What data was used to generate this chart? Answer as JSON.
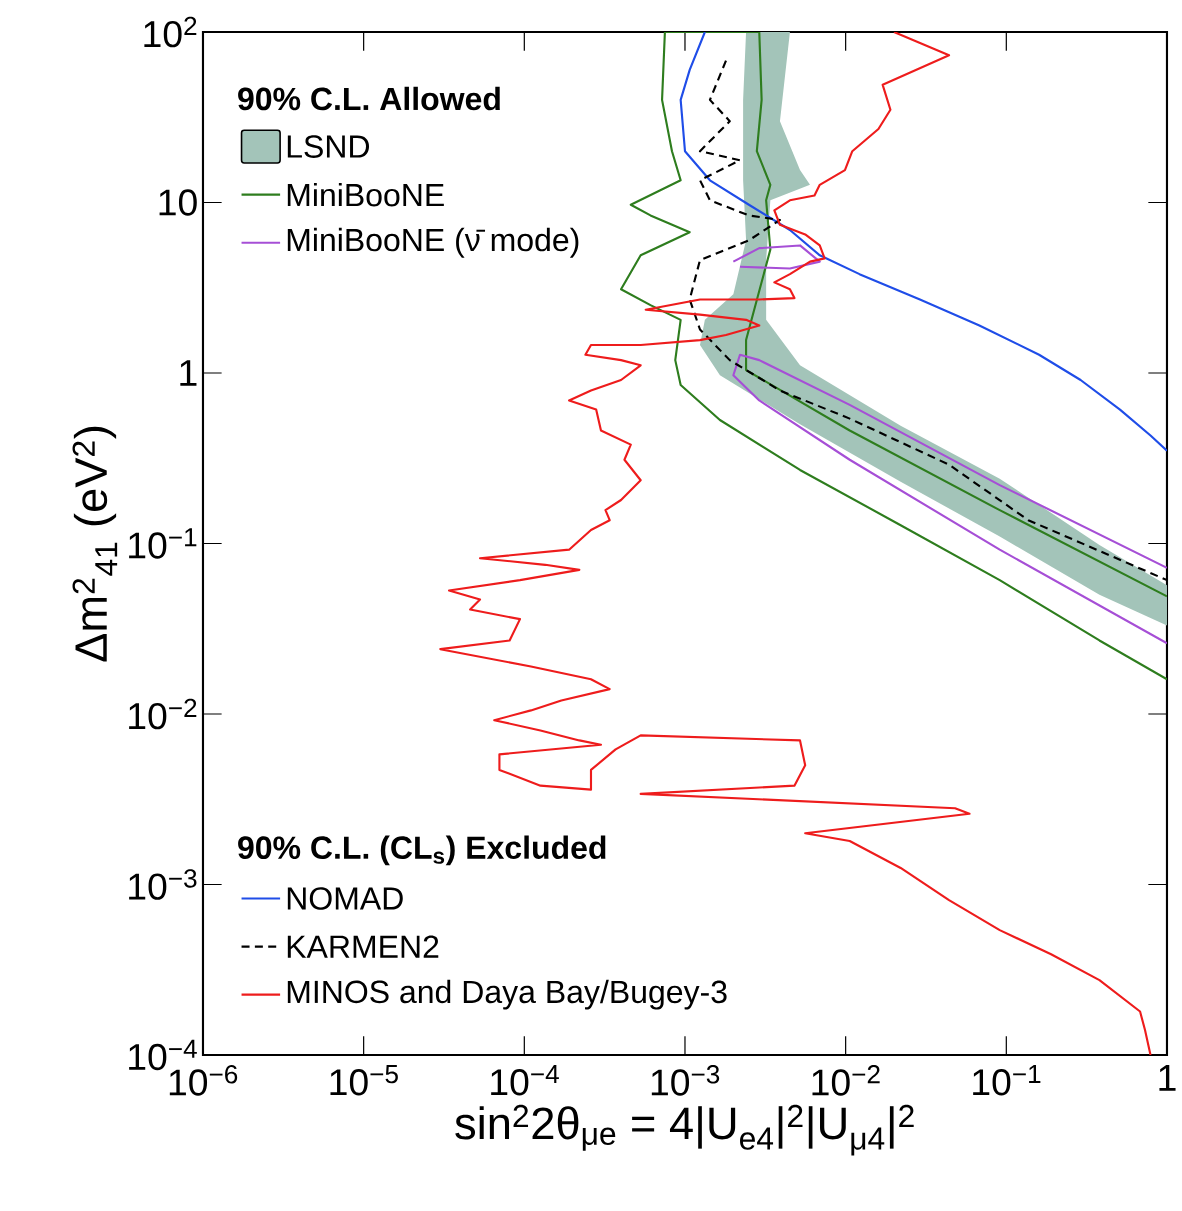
{
  "chart_data": {
    "type": "line",
    "xlabel": "sin$^{2}$2θ$_{μe}$ = 4|U$_{e4}$|$^{2}$|U$_{μ4}$|$^{2}$",
    "ylabel": "Δm$^{2}$$_{41}$ (eV$^{2}$)",
    "log": "xy",
    "legend": "left",
    "legend_title": "90% C.L. Allowed",
    "annotations": [
      "90% C.L. (CL$_{s}$) Excluded"
    ],
    "xlim": [
      1e-06,
      1
    ],
    "ylim": [
      0.0001,
      100
    ],
    "xticks": [
      {
        "value": 1e-06,
        "label": "10$^{−6}$"
      },
      {
        "value": 1e-05,
        "label": "10$^{−5}$"
      },
      {
        "value": 0.0001,
        "label": "10$^{−4}$"
      },
      {
        "value": 0.001,
        "label": "10$^{−3}$"
      },
      {
        "value": 0.01,
        "label": "10$^{−2}$"
      },
      {
        "value": 0.1,
        "label": "10$^{−1}$"
      },
      1
    ],
    "yticks": [
      {
        "value": 0.0001,
        "label": "10$^{−4}$"
      },
      {
        "value": 0.001,
        "label": "10$^{−3}$"
      },
      {
        "value": 0.01,
        "label": "10$^{−2}$"
      },
      {
        "value": 0.1,
        "label": "10$^{−1}$"
      },
      1,
      10,
      {
        "value": 100,
        "label": "10$^{2}$"
      }
    ],
    "series": [
      {
        "name": "LSND",
        "type": "area",
        "color": "#a3c4b9",
        "x": [
          0.0024,
          0.0045,
          0.0039,
          0.0052,
          0.006,
          0.0034,
          0.0032,
          0.0032,
          0.0052,
          0.022,
          0.091,
          0.38,
          1,
          1,
          0.38,
          0.091,
          0.022,
          0.0052,
          0.00165,
          0.00124,
          0.00133,
          0.002,
          0.0024,
          0.0023,
          0.0023
        ],
        "values": [
          100,
          100,
          30,
          15.5,
          12.7,
          10.3,
          4.6,
          2.05,
          1.11,
          0.49,
          0.24,
          0.098,
          0.057,
          0.033,
          0.05,
          0.11,
          0.23,
          0.5,
          0.97,
          1.46,
          2.05,
          2.9,
          6.0,
          13.5,
          40
        ]
      },
      {
        "name": "MiniBooNE",
        "color": "#2e7d1e",
        "x": [
          1,
          0.091,
          0.0106,
          0.0024,
          0.0024,
          0.0034,
          0.0032,
          0.0034,
          0.0028,
          0.003,
          0.0029,
          0.00075,
          0.00072,
          0.00083,
          0.00094,
          0.00046,
          0.00061,
          0.00107,
          0.00053,
          0.0004,
          0.00061,
          0.00094,
          0.00087,
          0.00094,
          0.00165,
          0.0052,
          0.022,
          0.091,
          0.38,
          1
        ],
        "values": [
          0.049,
          0.157,
          0.46,
          1.04,
          1.56,
          5.3,
          10.3,
          12.7,
          20,
          40,
          100,
          100,
          40,
          20,
          13.5,
          9.7,
          8.4,
          6.7,
          4.9,
          3.1,
          2.5,
          2.05,
          1.19,
          0.85,
          0.53,
          0.27,
          0.128,
          0.061,
          0.027,
          0.016
        ]
      },
      {
        "name": "MiniBooNE (ν̄ mode)",
        "color": "#a64fd6",
        "x": [
          1,
          0.091,
          0.0106,
          0.0029,
          0.0022,
          0.002,
          0.0029,
          0.0106,
          0.091,
          1
        ],
        "values": [
          0.072,
          0.22,
          0.65,
          1.19,
          1.28,
          0.97,
          0.69,
          0.31,
          0.092,
          0.026
        ]
      },
      {
        "color": "#a64fd6",
        "x": [
          0.002,
          0.0029,
          0.0052,
          0.0069,
          0.0045,
          0.0022
        ],
        "values": [
          4.5,
          5.4,
          5.6,
          4.5,
          4.1,
          4.2
        ]
      },
      {
        "name": "NOMAD",
        "color": "#1f4de8",
        "x": [
          0.00133,
          0.00107,
          0.00094,
          0.001,
          0.00143,
          0.0025,
          0.0045,
          0.0069,
          0.0122,
          0.029,
          0.068,
          0.16,
          0.29,
          0.51,
          0.79,
          1
        ],
        "values": [
          100,
          60,
          40,
          20,
          13.5,
          9.7,
          6.9,
          4.9,
          3.8,
          2.7,
          1.9,
          1.28,
          0.91,
          0.61,
          0.43,
          0.35
        ]
      },
      {
        "name": "KARMEN2",
        "color": "#000000",
        "line_style": "dashed",
        "x": [
          0.0018,
          0.00143,
          0.0019,
          0.00124,
          0.0022,
          0.00124,
          0.00143,
          0.0025,
          0.0039,
          0.0025,
          0.00124,
          0.00107,
          0.00124,
          0.0019,
          0.0039,
          0.0106,
          0.044,
          0.137,
          1
        ],
        "values": [
          68,
          40,
          30,
          20,
          17.7,
          13.5,
          10.3,
          8.4,
          7.9,
          6.0,
          4.6,
          2.7,
          1.8,
          1.19,
          0.79,
          0.54,
          0.29,
          0.137,
          0.061
        ]
      },
      {
        "name": "MINOS and Daya Bay/Bugey-3",
        "color": "#ee1c1c",
        "x": [
          0.02,
          0.044,
          0.017,
          0.019,
          0.016,
          0.011,
          0.0099,
          0.0069,
          0.0064,
          0.0045,
          0.0036,
          0.0039,
          0.0056,
          0.0069,
          0.0074,
          0.006,
          0.0045,
          0.0036,
          0.0045,
          0.0048,
          0.0029,
          0.00124,
          0.00057,
          0.00124,
          0.0024,
          0.0029,
          0.0018,
          0.00124,
          0.00053,
          0.00026,
          0.00024,
          0.0004,
          0.00053,
          0.0004,
          0.00026,
          0.00019,
          0.00028,
          0.0003,
          0.00046,
          0.00042,
          0.00053,
          0.0004,
          0.00032,
          0.00034,
          0.00026,
          0.00019,
          5.3e-05,
          0.000135,
          0.00022,
          9.4e-05,
          3.4e-05,
          5.3e-05,
          4.6e-05,
          9.4e-05,
          8.1e-05,
          3e-05,
          0.00011,
          0.00026,
          0.00034,
          0.00017,
          0.00011,
          6.5e-05,
          0.000126,
          0.00022,
          0.0003,
          7e-05,
          7e-05,
          0.000126,
          0.00026,
          0.00026,
          0.00037,
          0.00053,
          0.0052,
          0.0056,
          0.0048,
          0.00053,
          0.048,
          0.059,
          0.0056,
          0.0106,
          0.022,
          0.044,
          0.091,
          0.19,
          0.38,
          0.68,
          0.73,
          0.79
        ],
        "values": [
          100,
          73,
          49,
          35,
          27,
          20,
          15.5,
          12.7,
          11,
          10.3,
          9.0,
          7.4,
          6.5,
          5.6,
          4.7,
          4.5,
          3.8,
          3.4,
          3.1,
          2.75,
          2.7,
          2.7,
          2.35,
          2.2,
          2.05,
          1.9,
          1.67,
          1.56,
          1.46,
          1.46,
          1.28,
          1.19,
          1.11,
          0.91,
          0.79,
          0.69,
          0.61,
          0.46,
          0.38,
          0.31,
          0.235,
          0.18,
          0.157,
          0.137,
          0.12,
          0.092,
          0.082,
          0.075,
          0.07,
          0.061,
          0.053,
          0.047,
          0.041,
          0.036,
          0.027,
          0.024,
          0.019,
          0.016,
          0.014,
          0.012,
          0.0105,
          0.0092,
          0.008,
          0.007,
          0.0066,
          0.0058,
          0.0047,
          0.0038,
          0.0036,
          0.0047,
          0.0062,
          0.0075,
          0.007,
          0.005,
          0.0038,
          0.0034,
          0.0028,
          0.0026,
          0.002,
          0.0018,
          0.00125,
          0.00081,
          0.00054,
          0.00039,
          0.000275,
          0.00018,
          0.00014,
          0.0001
        ]
      }
    ]
  }
}
